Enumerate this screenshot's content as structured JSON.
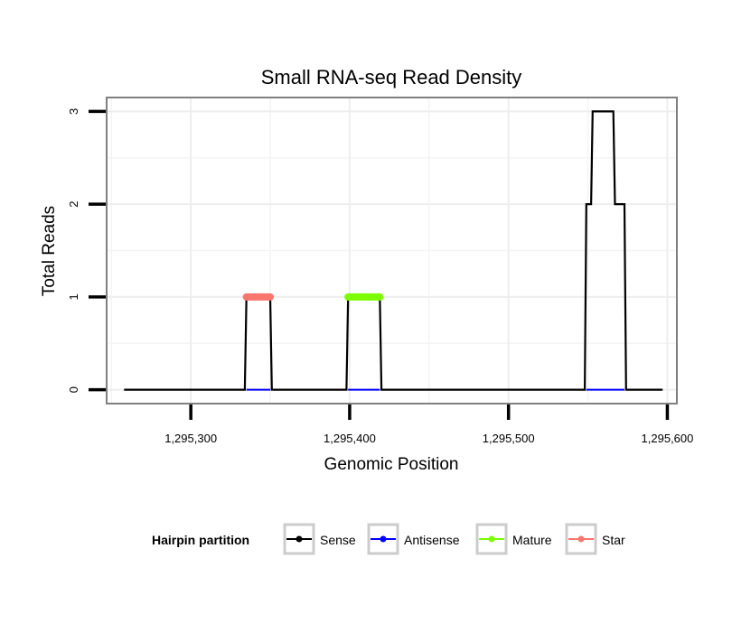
{
  "chart_data": {
    "type": "line",
    "title": "Small RNA-seq Read Density",
    "xlabel": "Genomic Position",
    "ylabel": "Total Reads",
    "xlim": [
      1295247,
      1295606
    ],
    "ylim": [
      -0.15,
      3.15
    ],
    "x_ticks": [
      1295300,
      1295400,
      1295500,
      1295600
    ],
    "x_tick_labels": [
      "1,295,300",
      "1,295,400",
      "1,295,500",
      "1,295,600"
    ],
    "y_ticks": [
      0,
      1,
      2,
      3
    ],
    "y_tick_labels": [
      "0",
      "1",
      "2",
      "3"
    ],
    "grid": true,
    "legend": {
      "title": "Hairpin partition",
      "position": "bottom",
      "entries": [
        "Sense",
        "Antisense",
        "Mature",
        "Star"
      ]
    },
    "series": [
      {
        "name": "Sense",
        "color": "#000000",
        "x": [
          1295258,
          1295334,
          1295335,
          1295350,
          1295351,
          1295398,
          1295399,
          1295419,
          1295420,
          1295548,
          1295549,
          1295552,
          1295553,
          1295566,
          1295567,
          1295573,
          1295574,
          1295597
        ],
        "y": [
          0,
          0,
          1,
          1,
          0,
          0,
          1,
          1,
          0,
          0,
          2,
          2,
          3,
          3,
          2,
          2,
          0,
          0
        ]
      },
      {
        "name": "Antisense",
        "color": "#0000FF",
        "segments": [
          [
            1295335,
            1295350
          ],
          [
            1295399,
            1295419
          ],
          [
            1295549,
            1295573
          ]
        ],
        "y": 0
      },
      {
        "name": "Mature",
        "color": "#7CFC00",
        "segments": [
          [
            1295399,
            1295419
          ]
        ],
        "y": 1
      },
      {
        "name": "Star",
        "color": "#F8766D",
        "segments": [
          [
            1295335,
            1295350
          ]
        ],
        "y": 1
      }
    ]
  }
}
